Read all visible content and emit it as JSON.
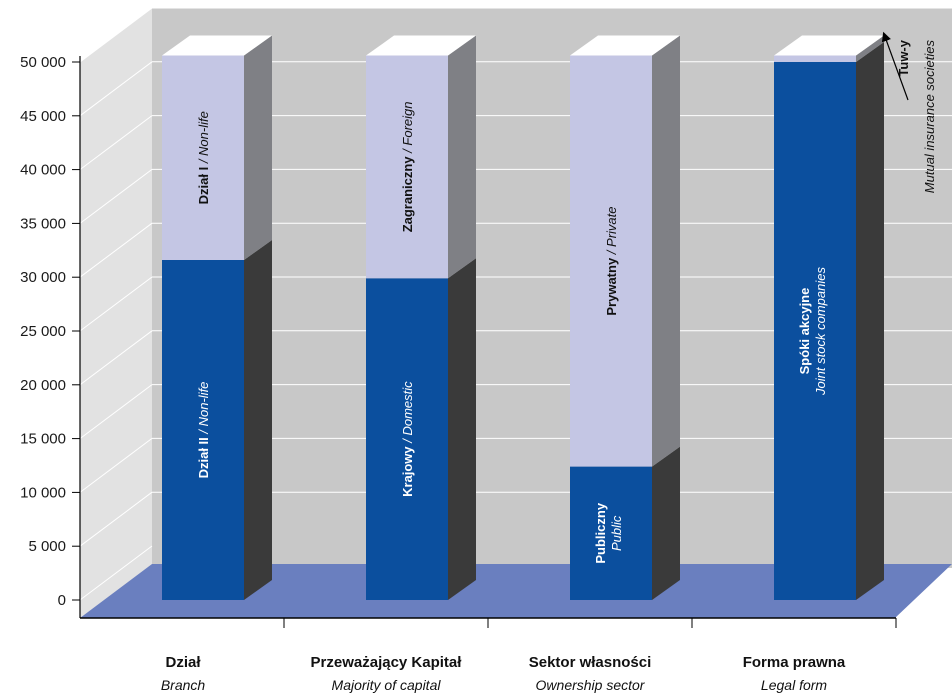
{
  "chart_data": {
    "type": "bar",
    "stacked": true,
    "three_d": true,
    "ylim": [
      0,
      50000
    ],
    "y_ticks": [
      0,
      5000,
      10000,
      15000,
      20000,
      25000,
      30000,
      35000,
      40000,
      45000,
      50000
    ],
    "y_tick_labels": [
      "0",
      "5 000",
      "10 000",
      "15 000",
      "20 000",
      "25 000",
      "30 000",
      "35 000",
      "40 000",
      "45 000",
      "50 000"
    ],
    "grid": true,
    "categories": [
      {
        "pl": "Dział",
        "en": "Branch"
      },
      {
        "pl": "Przeważający Kapitał",
        "en": "Majority of capital"
      },
      {
        "pl": "Sektor własności",
        "en": "Ownership sector"
      },
      {
        "pl": "Forma prawna",
        "en": "Legal form"
      }
    ],
    "bars": [
      {
        "segments": [
          {
            "value": 31600,
            "pl": "Dział II",
            "en": "Non-life",
            "role": "bottom"
          },
          {
            "value": 19000,
            "pl": "Dział I",
            "en": "Non-life",
            "role": "top"
          }
        ]
      },
      {
        "segments": [
          {
            "value": 29900,
            "pl": "Krajowy",
            "en": "Domestic",
            "role": "bottom"
          },
          {
            "value": 20700,
            "pl": "Zagraniczny",
            "en": "Foreign",
            "role": "top"
          }
        ]
      },
      {
        "segments": [
          {
            "value": 12400,
            "pl": "Publiczny",
            "en": "Public",
            "role": "bottom"
          },
          {
            "value": 38200,
            "pl": "Prywatny",
            "en": "Private",
            "role": "top"
          }
        ]
      },
      {
        "segments": [
          {
            "value": 50000,
            "pl": "Spóki akcyjne",
            "en": "Joint stock companies",
            "role": "bottom"
          },
          {
            "value": 600,
            "pl": "Tuw-y",
            "en": "Mutual insurance societies",
            "role": "top"
          }
        ]
      }
    ],
    "colors": {
      "bottom_front": "#0b4f9e",
      "bottom_side": "#3a3a3a",
      "top_front": "#c4c6e4",
      "top_side": "#7f8085",
      "top_cap": "#ffffff",
      "floor": "#6a7fbf",
      "back_wall": "#c8c8c8",
      "left_wall": "#e2e2e2"
    }
  }
}
